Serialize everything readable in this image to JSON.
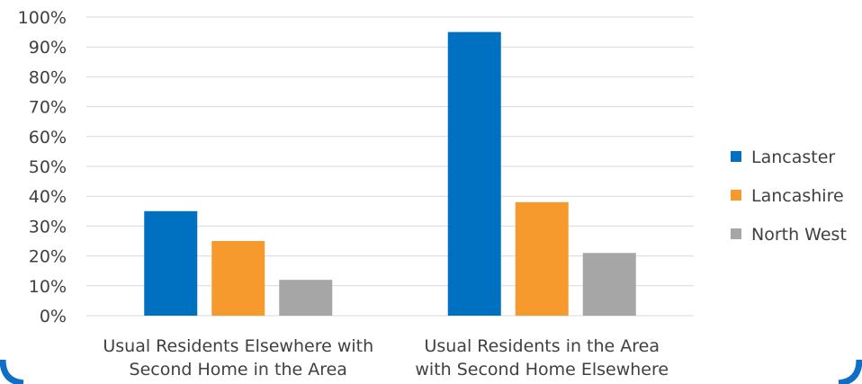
{
  "chart_data": {
    "type": "bar",
    "title": "",
    "xlabel": "",
    "ylabel": "",
    "ylim": [
      0,
      1
    ],
    "y_ticks": [
      "0%",
      "10%",
      "20%",
      "30%",
      "40%",
      "50%",
      "60%",
      "70%",
      "80%",
      "90%",
      "100%"
    ],
    "grid": true,
    "legend_position": "right",
    "categories": [
      [
        "Usual Residents Elsewhere with",
        "Second Home in the Area"
      ],
      [
        "Usual Residents in the Area",
        "with Second Home Elsewhere"
      ]
    ],
    "series": [
      {
        "name": "Lancaster",
        "color": "#0070c0",
        "values": [
          0.35,
          0.95
        ]
      },
      {
        "name": "Lancashire",
        "color": "#f79a2e",
        "values": [
          0.25,
          0.38
        ]
      },
      {
        "name": "North West",
        "color": "#a6a6a6",
        "values": [
          0.12,
          0.21
        ]
      }
    ],
    "frame_color": "#0f6fc6"
  }
}
